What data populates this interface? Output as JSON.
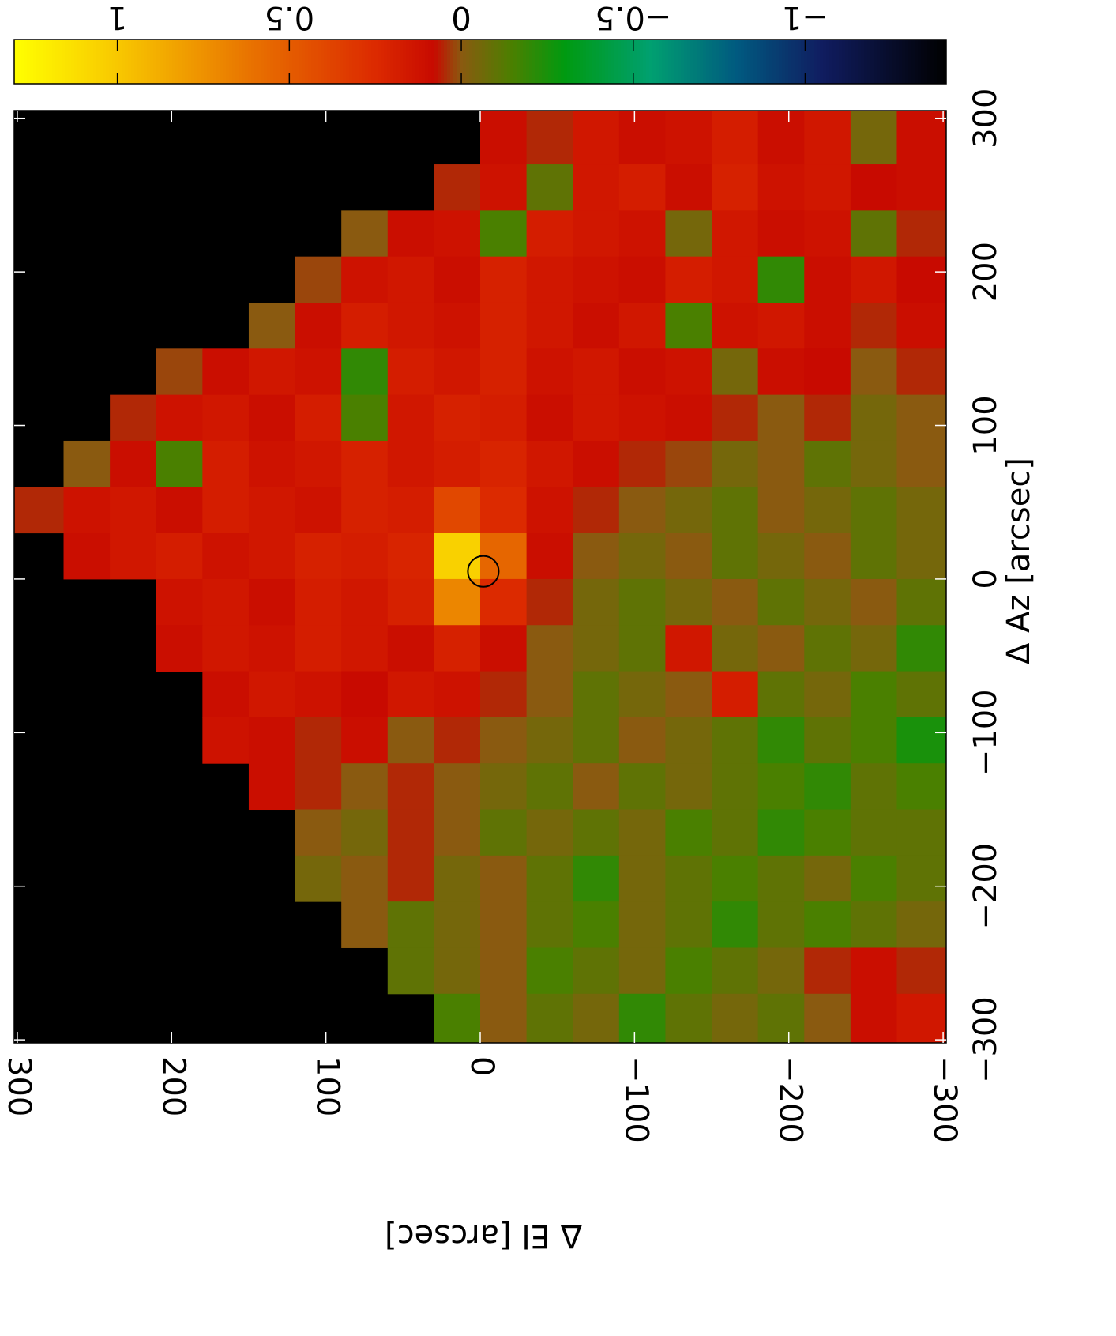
{
  "chart_data": {
    "type": "heatmap",
    "xlabel": "Δ El [arcsec]",
    "ylabel": "Δ Az [arcsec]",
    "xlim": [
      302,
      -302
    ],
    "ylim": [
      -302,
      305
    ],
    "xticks": [
      300,
      200,
      100,
      0,
      {
        "value": -100,
        "label": "−100"
      },
      {
        "value": -200,
        "label": "−200"
      },
      {
        "value": -300,
        "label": "−300"
      }
    ],
    "yticks": [
      {
        "value": -300,
        "label": "−300"
      },
      {
        "value": -200,
        "label": "−200"
      },
      {
        "value": -100,
        "label": "−100"
      },
      0,
      100,
      200,
      300
    ],
    "clim": [
      1.3,
      -1.41
    ],
    "cticks": [
      1,
      0.5,
      0,
      {
        "value": -0.5,
        "label": "−0.5"
      },
      {
        "value": -1,
        "label": "−1"
      }
    ],
    "colorscale": [
      [
        1.3,
        "#ffff00"
      ],
      [
        1.0,
        "#f8c800"
      ],
      [
        0.6,
        "#e87000"
      ],
      [
        0.25,
        "#dc2a00"
      ],
      [
        0.08,
        "#c80a00"
      ],
      [
        0,
        "#8a5a10"
      ],
      [
        -0.15,
        "#4a8000"
      ],
      [
        -0.3,
        "#009a10"
      ],
      [
        -0.55,
        "#00a070"
      ],
      [
        -0.8,
        "#005a80"
      ],
      [
        -1.05,
        "#101c60"
      ],
      [
        -1.41,
        "#000000"
      ]
    ],
    "background": "#000000",
    "x": [
      285,
      255,
      225,
      195,
      165,
      135,
      105,
      75,
      45,
      15,
      -15,
      -45,
      -75,
      -105,
      -135,
      -165,
      -195,
      -225,
      -255,
      -285
    ],
    "y": [
      285,
      255,
      225,
      195,
      165,
      135,
      105,
      75,
      45,
      15,
      -15,
      -45,
      -75,
      -105,
      -135,
      -165,
      -195,
      -225,
      -255,
      -285
    ],
    "z": [
      [
        null,
        null,
        null,
        null,
        null,
        null,
        null,
        null,
        null,
        null,
        0.1,
        0.05,
        0.15,
        0.1,
        0.12,
        0.18,
        0.1,
        0.15,
        -0.05,
        0.1
      ],
      [
        null,
        null,
        null,
        null,
        null,
        null,
        null,
        null,
        null,
        0.05,
        0.12,
        -0.1,
        0.15,
        0.18,
        0.1,
        0.2,
        0.12,
        0.15,
        0.08,
        0.1
      ],
      [
        null,
        null,
        null,
        null,
        null,
        null,
        null,
        0.0,
        0.1,
        0.12,
        -0.15,
        0.18,
        0.15,
        0.12,
        -0.05,
        0.15,
        0.1,
        0.12,
        -0.1,
        0.05
      ],
      [
        null,
        null,
        null,
        null,
        null,
        null,
        0.02,
        0.12,
        0.15,
        0.1,
        0.2,
        0.15,
        0.12,
        0.1,
        0.18,
        0.15,
        -0.2,
        0.1,
        0.15,
        0.08
      ],
      [
        null,
        null,
        null,
        null,
        null,
        0.0,
        0.1,
        0.18,
        0.15,
        0.12,
        0.2,
        0.15,
        0.1,
        0.15,
        -0.15,
        0.12,
        0.15,
        0.1,
        0.05,
        0.1
      ],
      [
        null,
        null,
        null,
        0.02,
        0.1,
        0.15,
        0.12,
        -0.2,
        0.18,
        0.15,
        0.2,
        0.12,
        0.15,
        0.1,
        0.12,
        -0.05,
        0.1,
        0.08,
        0.0,
        0.05
      ],
      [
        null,
        null,
        0.05,
        0.12,
        0.15,
        0.1,
        0.18,
        -0.15,
        0.15,
        0.2,
        0.18,
        0.1,
        0.15,
        0.12,
        0.1,
        0.05,
        0.0,
        0.05,
        -0.05,
        0.0
      ],
      [
        null,
        0.0,
        0.1,
        -0.15,
        0.18,
        0.12,
        0.15,
        0.2,
        0.15,
        0.18,
        0.22,
        0.15,
        0.1,
        0.05,
        0.02,
        -0.05,
        0.0,
        -0.1,
        -0.05,
        0.0
      ],
      [
        0.05,
        0.12,
        0.15,
        0.1,
        0.18,
        0.15,
        0.12,
        0.2,
        0.18,
        0.4,
        0.25,
        0.12,
        0.05,
        0.0,
        -0.05,
        -0.1,
        0.0,
        -0.05,
        -0.1,
        -0.05
      ],
      [
        null,
        0.1,
        0.15,
        0.18,
        0.12,
        0.15,
        0.2,
        0.18,
        0.22,
        1.05,
        0.55,
        0.1,
        0.0,
        -0.05,
        0.0,
        -0.1,
        -0.05,
        0.0,
        -0.1,
        -0.05
      ],
      [
        null,
        null,
        null,
        0.12,
        0.15,
        0.1,
        0.18,
        0.15,
        0.2,
        0.7,
        0.25,
        0.05,
        -0.05,
        -0.1,
        -0.05,
        0.0,
        -0.1,
        -0.05,
        0.0,
        -0.1
      ],
      [
        null,
        null,
        null,
        0.1,
        0.15,
        0.12,
        0.18,
        0.15,
        0.1,
        0.2,
        0.1,
        0.0,
        -0.05,
        -0.1,
        0.15,
        -0.05,
        0.0,
        -0.1,
        -0.05,
        -0.2
      ],
      [
        null,
        null,
        null,
        null,
        0.1,
        0.15,
        0.12,
        0.08,
        0.15,
        0.12,
        0.05,
        0.0,
        -0.1,
        -0.05,
        0.0,
        0.18,
        -0.1,
        -0.05,
        -0.15,
        -0.1
      ],
      [
        null,
        null,
        null,
        null,
        0.12,
        0.1,
        0.05,
        0.1,
        0.0,
        0.05,
        0.0,
        -0.05,
        -0.1,
        0.0,
        -0.05,
        -0.1,
        -0.2,
        -0.1,
        -0.15,
        -0.25
      ],
      [
        null,
        null,
        null,
        null,
        null,
        0.1,
        0.05,
        0.0,
        0.05,
        0.0,
        -0.05,
        -0.1,
        0.0,
        -0.1,
        -0.05,
        -0.1,
        -0.15,
        -0.2,
        -0.1,
        -0.15
      ],
      [
        null,
        null,
        null,
        null,
        null,
        null,
        0.0,
        -0.05,
        0.05,
        0.0,
        -0.1,
        -0.05,
        -0.1,
        -0.05,
        -0.15,
        -0.1,
        -0.2,
        -0.15,
        -0.1,
        -0.1
      ],
      [
        null,
        null,
        null,
        null,
        null,
        null,
        -0.05,
        0.0,
        0.05,
        -0.05,
        0.0,
        -0.1,
        -0.2,
        -0.05,
        -0.1,
        -0.15,
        -0.1,
        -0.05,
        -0.15,
        -0.1
      ],
      [
        null,
        null,
        null,
        null,
        null,
        null,
        null,
        0.0,
        -0.1,
        -0.05,
        0.0,
        -0.1,
        -0.15,
        -0.05,
        -0.1,
        -0.2,
        -0.1,
        -0.15,
        -0.1,
        -0.05
      ],
      [
        null,
        null,
        null,
        null,
        null,
        null,
        null,
        null,
        -0.1,
        -0.05,
        0.0,
        -0.15,
        -0.1,
        -0.05,
        -0.15,
        -0.1,
        -0.05,
        0.05,
        0.1,
        0.05
      ],
      [
        null,
        null,
        null,
        null,
        null,
        null,
        null,
        null,
        null,
        -0.15,
        0.0,
        -0.1,
        -0.05,
        -0.2,
        -0.1,
        -0.05,
        -0.1,
        0.0,
        0.1,
        0.15
      ]
    ],
    "beam": {
      "x": -2,
      "y": 5,
      "radius": 10
    }
  }
}
